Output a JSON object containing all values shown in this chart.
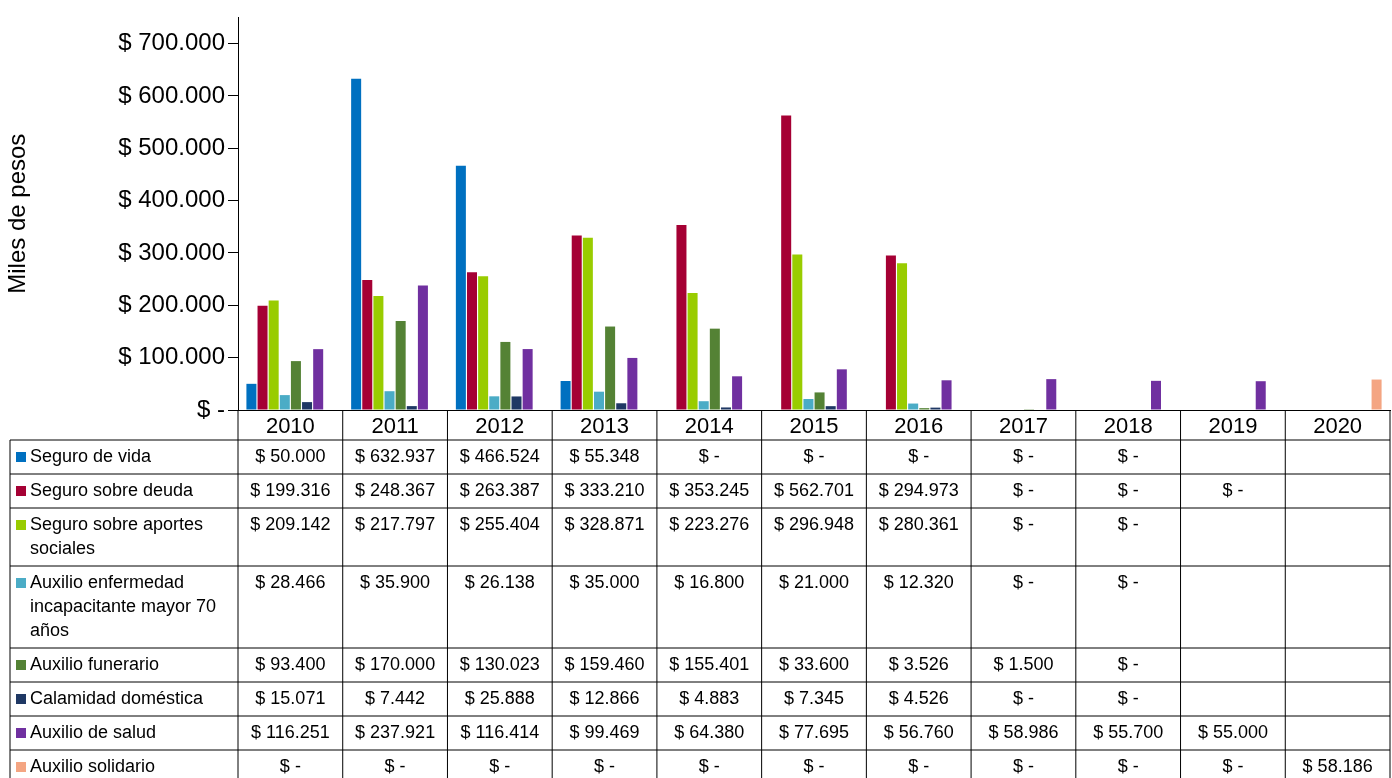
{
  "chart_data": {
    "type": "bar",
    "ylabel": "Miles de pesos",
    "categories": [
      "2010",
      "2011",
      "2012",
      "2013",
      "2014",
      "2015",
      "2016",
      "2017",
      "2018",
      "2019",
      "2020"
    ],
    "ylim": [
      0,
      750000
    ],
    "yticks": [
      {
        "value": 0,
        "label": "$ -"
      },
      {
        "value": 100000,
        "label": "$ 100.000"
      },
      {
        "value": 200000,
        "label": "$ 200.000"
      },
      {
        "value": 300000,
        "label": "$ 300.000"
      },
      {
        "value": 400000,
        "label": "$ 400.000"
      },
      {
        "value": 500000,
        "label": "$ 500.000"
      },
      {
        "value": 600000,
        "label": "$ 600.000"
      },
      {
        "value": 700000,
        "label": "$ 700.000"
      }
    ],
    "grid": false,
    "legend": "bottom",
    "series": [
      {
        "name": "Seguro de vida",
        "color": "#0070c0",
        "values": [
          50000,
          632937,
          466524,
          55348,
          0,
          0,
          0,
          0,
          0,
          null,
          null
        ],
        "value_labels": [
          "$ 50.000",
          "$ 632.937",
          "$ 466.524",
          "$ 55.348",
          "$ -",
          "$ -",
          "$ -",
          "$ -",
          "$ -",
          null,
          null
        ]
      },
      {
        "name": "Seguro sobre deuda",
        "color": "#a50034",
        "values": [
          199316,
          248367,
          263387,
          333210,
          353245,
          562701,
          294973,
          0,
          0,
          0,
          null
        ],
        "value_labels": [
          "$ 199.316",
          "$ 248.367",
          "$ 263.387",
          "$ 333.210",
          "$ 353.245",
          "$ 562.701",
          "$ 294.973",
          "$ -",
          "$ -",
          "$ -",
          null
        ]
      },
      {
        "name": "Seguro sobre aportes sociales",
        "color": "#99cc00",
        "values": [
          209142,
          217797,
          255404,
          328871,
          223276,
          296948,
          280361,
          0,
          0,
          null,
          null
        ],
        "value_labels": [
          "$ 209.142",
          "$ 217.797",
          "$ 255.404",
          "$ 328.871",
          "$ 223.276",
          "$ 296.948",
          "$ 280.361",
          "$ -",
          "$ -",
          null,
          null
        ]
      },
      {
        "name": "Auxilio enfermedad incapacitante mayor 70 años",
        "color": "#4bacc6",
        "values": [
          28466,
          35900,
          26138,
          35000,
          16800,
          21000,
          12320,
          0,
          0,
          null,
          null
        ],
        "value_labels": [
          "$ 28.466",
          "$ 35.900",
          "$ 26.138",
          "$ 35.000",
          "$ 16.800",
          "$ 21.000",
          "$ 12.320",
          "$ -",
          "$ -",
          null,
          null
        ]
      },
      {
        "name": "Auxilio funerario",
        "color": "#548235",
        "values": [
          93400,
          170000,
          130023,
          159460,
          155401,
          33600,
          3526,
          1500,
          0,
          null,
          null
        ],
        "value_labels": [
          "$ 93.400",
          "$ 170.000",
          "$ 130.023",
          "$ 159.460",
          "$ 155.401",
          "$ 33.600",
          "$ 3.526",
          "$ 1.500",
          "$ -",
          null,
          null
        ]
      },
      {
        "name": "Calamidad doméstica",
        "color": "#1f3864",
        "values": [
          15071,
          7442,
          25888,
          12866,
          4883,
          7345,
          4526,
          0,
          0,
          null,
          null
        ],
        "value_labels": [
          "$ 15.071",
          "$ 7.442",
          "$ 25.888",
          "$ 12.866",
          "$ 4.883",
          "$ 7.345",
          "$ 4.526",
          "$ -",
          "$ -",
          null,
          null
        ]
      },
      {
        "name": "Auxilio de salud",
        "color": "#7030a0",
        "values": [
          116251,
          237921,
          116414,
          99469,
          64380,
          77695,
          56760,
          58986,
          55700,
          55000,
          null
        ],
        "value_labels": [
          "$ 116.251",
          "$ 237.921",
          "$ 116.414",
          "$ 99.469",
          "$ 64.380",
          "$ 77.695",
          "$ 56.760",
          "$ 58.986",
          "$ 55.700",
          "$ 55.000",
          null
        ]
      },
      {
        "name": "Auxilio solidario",
        "color": "#f4a582",
        "values": [
          0,
          0,
          0,
          0,
          0,
          0,
          0,
          0,
          0,
          0,
          58186
        ],
        "value_labels": [
          "$ -",
          "$ -",
          "$ -",
          "$ -",
          "$ -",
          "$ -",
          "$ -",
          "$ -",
          "$ -",
          "$ -",
          "$ 58.186"
        ]
      }
    ]
  }
}
